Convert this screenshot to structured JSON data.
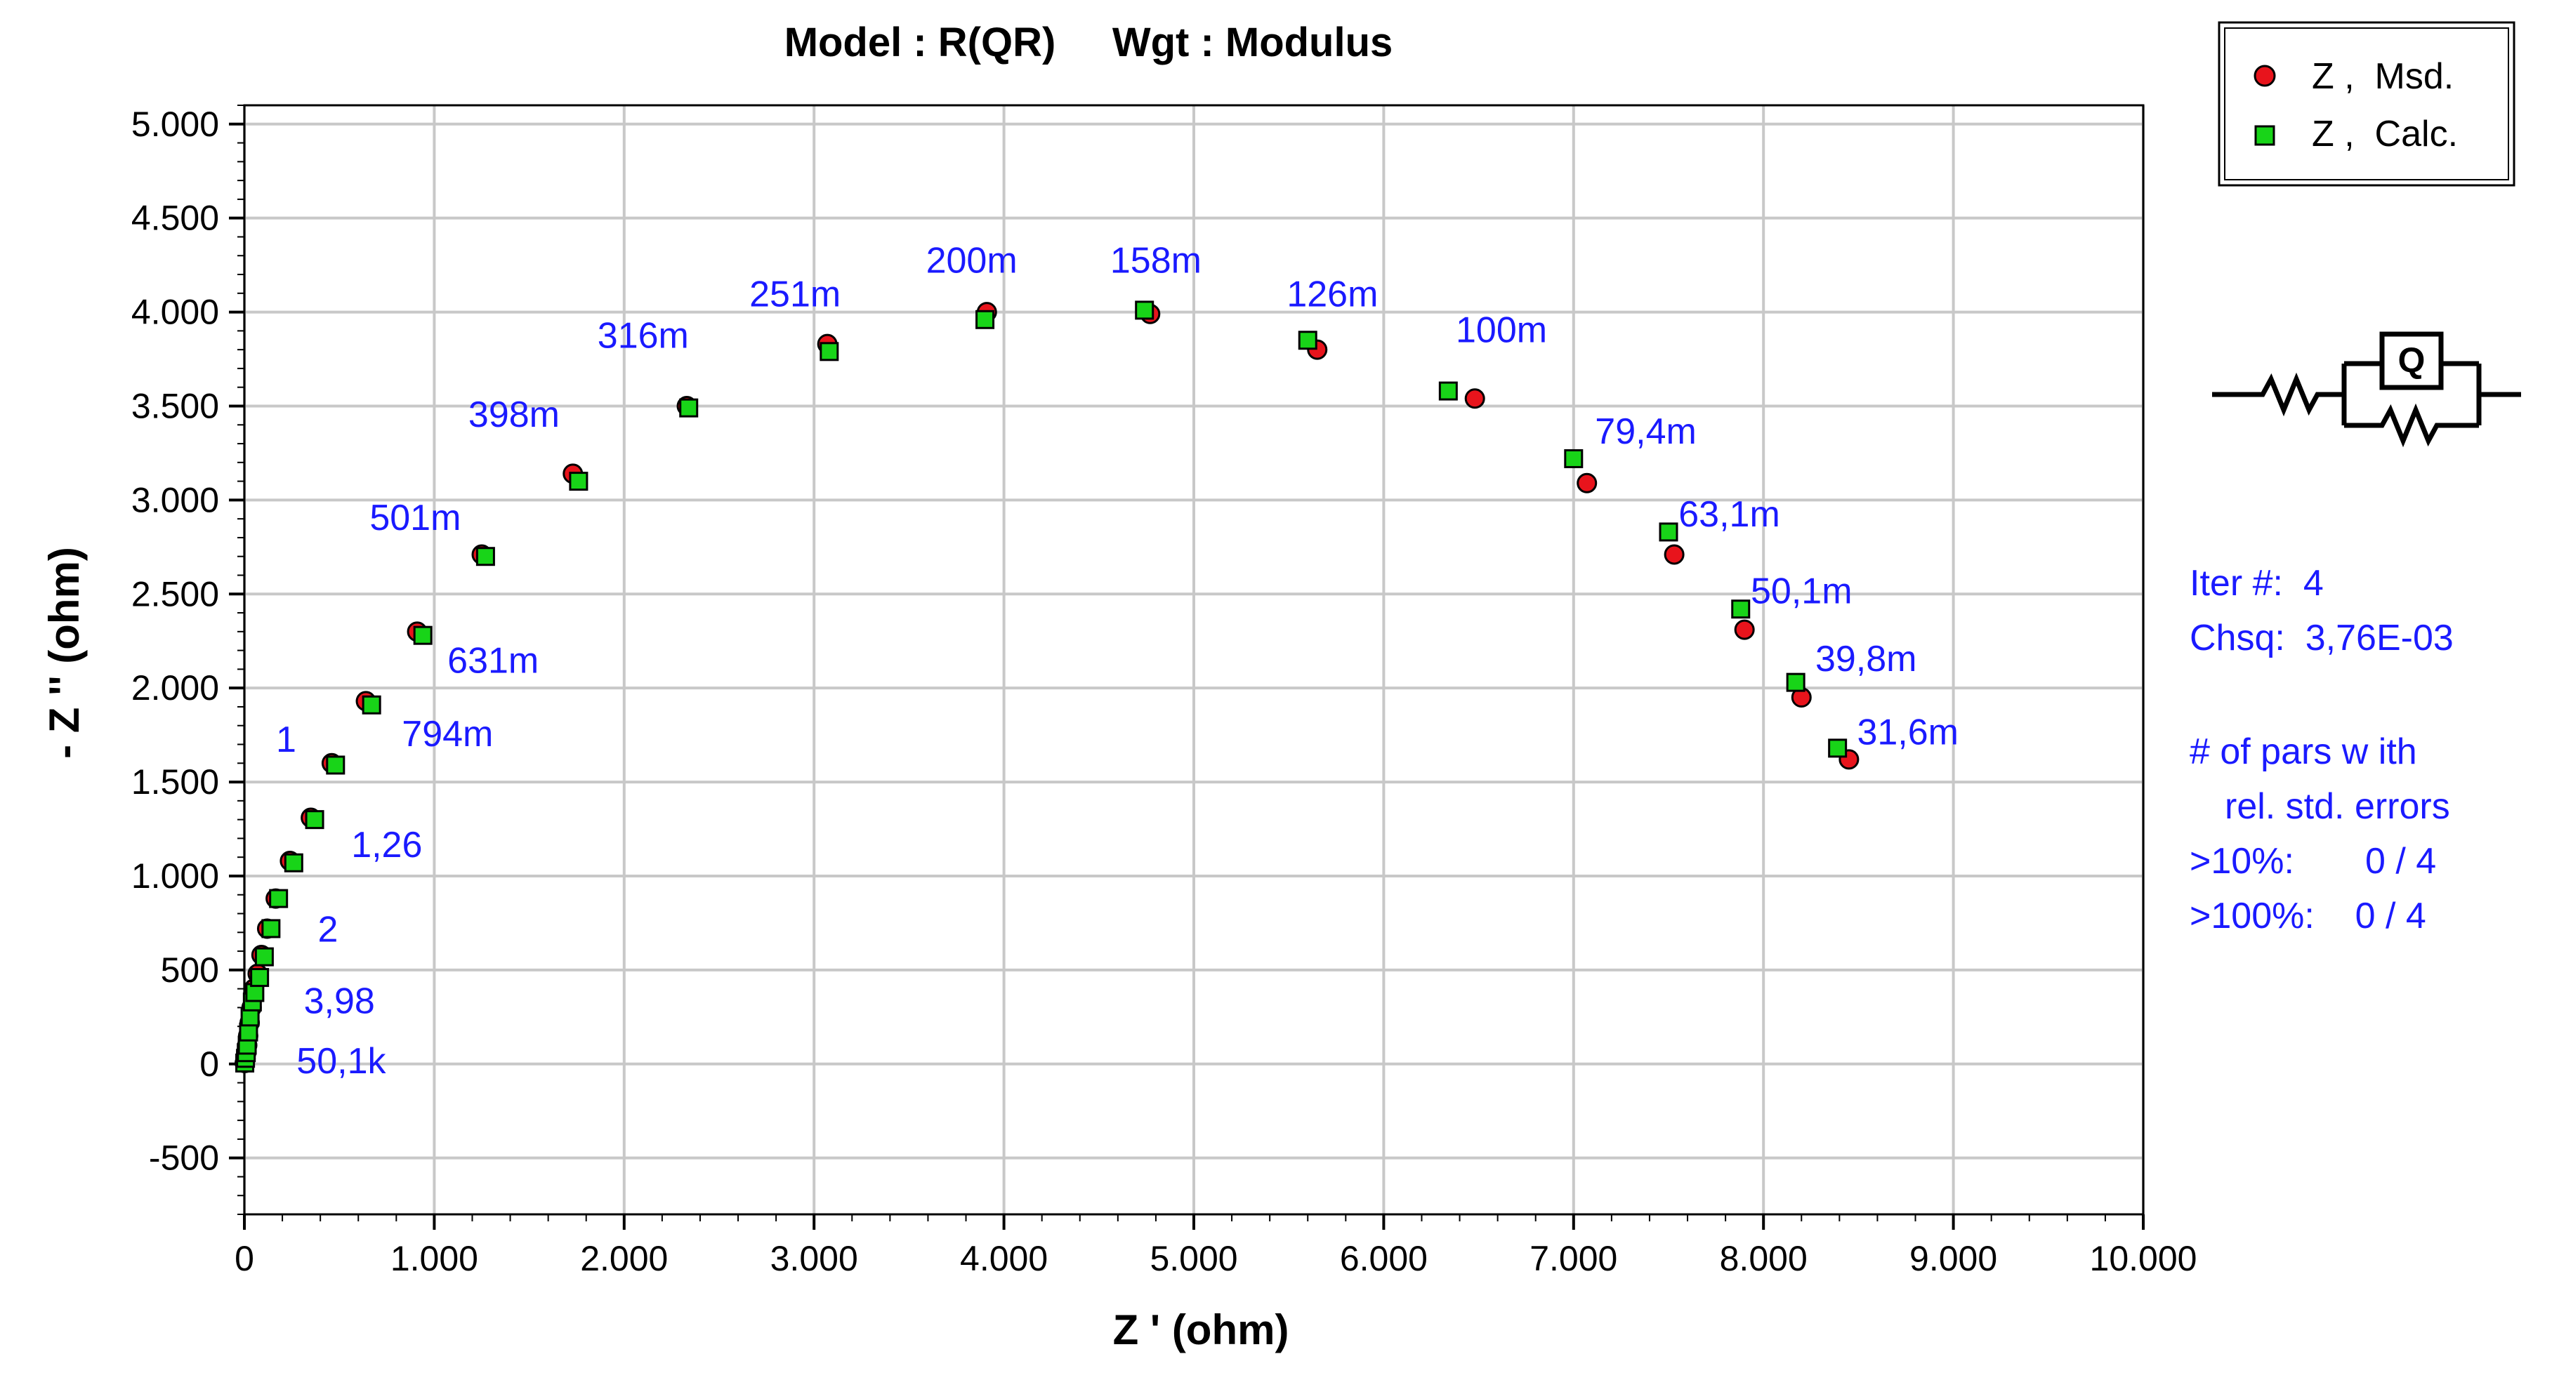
{
  "chart_data": {
    "type": "scatter",
    "title": "Model : R(QR)     Wgt : Modulus",
    "xlabel": "Z ' (ohm)",
    "ylabel": "- Z '' (ohm)",
    "xlim": [
      0,
      10000
    ],
    "ylim": [
      -800,
      5100
    ],
    "x_ticks": [
      0,
      1000,
      2000,
      3000,
      4000,
      5000,
      6000,
      7000,
      8000,
      9000,
      10000
    ],
    "x_tick_labels": [
      "0",
      "1.000",
      "2.000",
      "3.000",
      "4.000",
      "5.000",
      "6.000",
      "7.000",
      "8.000",
      "9.000",
      "10.000"
    ],
    "y_ticks": [
      -500,
      0,
      500,
      1000,
      1500,
      2000,
      2500,
      3000,
      3500,
      4000,
      4500,
      5000
    ],
    "y_tick_labels": [
      "-500",
      "0",
      "500",
      "1.000",
      "1.500",
      "2.000",
      "2.500",
      "3.000",
      "3.500",
      "4.000",
      "4.500",
      "5.000"
    ],
    "grid": true,
    "legend_position": "top-right",
    "series": [
      {
        "name": "Z , Msd.",
        "marker": "circle",
        "color": "#e8141c",
        "points": [
          [
            2,
            5
          ],
          [
            6,
            30
          ],
          [
            10,
            60
          ],
          [
            15,
            100
          ],
          [
            20,
            150
          ],
          [
            28,
            220
          ],
          [
            38,
            300
          ],
          [
            50,
            400
          ],
          [
            70,
            480
          ],
          [
            90,
            580
          ],
          [
            120,
            720
          ],
          [
            165,
            880
          ],
          [
            240,
            1080
          ],
          [
            350,
            1310
          ],
          [
            460,
            1600
          ],
          [
            640,
            1930
          ],
          [
            910,
            2300
          ],
          [
            1250,
            2710
          ],
          [
            1730,
            3140
          ],
          [
            2330,
            3500
          ],
          [
            3070,
            3830
          ],
          [
            3910,
            4000
          ],
          [
            4770,
            3990
          ],
          [
            5650,
            3800
          ],
          [
            6480,
            3540
          ],
          [
            7070,
            3090
          ],
          [
            7530,
            2710
          ],
          [
            7900,
            2310
          ],
          [
            8200,
            1950
          ],
          [
            8450,
            1620
          ]
        ]
      },
      {
        "name": "Z , Calc.",
        "marker": "square",
        "color": "#18d418",
        "points": [
          [
            2,
            5
          ],
          [
            6,
            30
          ],
          [
            10,
            60
          ],
          [
            15,
            100
          ],
          [
            22,
            170
          ],
          [
            30,
            250
          ],
          [
            42,
            330
          ],
          [
            55,
            380
          ],
          [
            80,
            460
          ],
          [
            105,
            570
          ],
          [
            140,
            720
          ],
          [
            180,
            880
          ],
          [
            260,
            1070
          ],
          [
            370,
            1300
          ],
          [
            480,
            1590
          ],
          [
            670,
            1910
          ],
          [
            940,
            2280
          ],
          [
            1270,
            2700
          ],
          [
            1760,
            3100
          ],
          [
            2340,
            3490
          ],
          [
            3080,
            3790
          ],
          [
            3900,
            3960
          ],
          [
            4740,
            4010
          ],
          [
            5600,
            3850
          ],
          [
            6340,
            3580
          ],
          [
            7000,
            3220
          ],
          [
            7500,
            2830
          ],
          [
            7880,
            2420
          ],
          [
            8170,
            2030
          ],
          [
            8390,
            1680
          ]
        ]
      }
    ],
    "annotations": [
      {
        "text": "200m",
        "x": 3830,
        "y": 4210
      },
      {
        "text": "158m",
        "x": 4800,
        "y": 4210
      },
      {
        "text": "251m",
        "x": 2900,
        "y": 4030
      },
      {
        "text": "126m",
        "x": 5730,
        "y": 4030
      },
      {
        "text": "316m",
        "x": 2100,
        "y": 3810
      },
      {
        "text": "100m",
        "x": 6620,
        "y": 3840
      },
      {
        "text": "398m",
        "x": 1420,
        "y": 3390
      },
      {
        "text": "79,4m",
        "x": 7380,
        "y": 3300
      },
      {
        "text": "501m",
        "x": 900,
        "y": 2840
      },
      {
        "text": "63,1m",
        "x": 7820,
        "y": 2860
      },
      {
        "text": "631m",
        "x": 1310,
        "y": 2080
      },
      {
        "text": "50,1m",
        "x": 8200,
        "y": 2450
      },
      {
        "text": "794m",
        "x": 1070,
        "y": 1690
      },
      {
        "text": "39,8m",
        "x": 8540,
        "y": 2090
      },
      {
        "text": "1",
        "x": 220,
        "y": 1660
      },
      {
        "text": "31,6m",
        "x": 8760,
        "y": 1700
      },
      {
        "text": "1,26",
        "x": 750,
        "y": 1100
      },
      {
        "text": "2",
        "x": 440,
        "y": 650
      },
      {
        "text": "3,98",
        "x": 500,
        "y": 270
      },
      {
        "text": "50,1k",
        "x": 510,
        "y": -50
      }
    ]
  },
  "legend": {
    "items": [
      {
        "label": "Z ,  Msd.",
        "marker": "circle",
        "color": "#e8141c"
      },
      {
        "label": "Z ,  Calc.",
        "marker": "square",
        "color": "#18d418"
      }
    ]
  },
  "circuit": {
    "element_label": "Q"
  },
  "info": {
    "iter": "Iter #:  4",
    "chsq": "Chsq:  3,76E-03",
    "pars_line1": "# of pars w ith",
    "pars_line2": "rel. std. errors",
    "pars_line3": ">10%:       0 / 4",
    "pars_line4": ">100%:    0 / 4"
  }
}
